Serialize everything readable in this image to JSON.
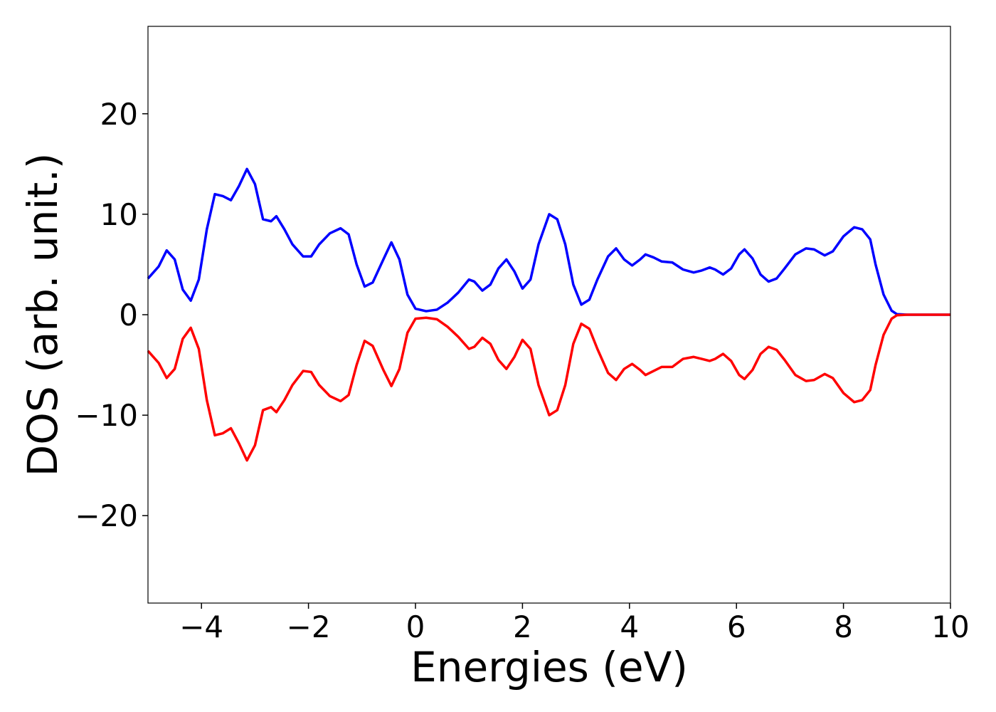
{
  "chart_data": {
    "type": "line",
    "xlabel": "Energies (eV)",
    "ylabel": "DOS (arb. unit.)",
    "xlim": [
      -5,
      10
    ],
    "ylim": [
      -28.7,
      28.7
    ],
    "xticks": [
      {
        "value": -4,
        "label": "−4"
      },
      {
        "value": -2,
        "label": "−2"
      },
      0,
      2,
      4,
      6,
      8,
      10
    ],
    "yticks": [
      {
        "value": -20,
        "label": "−20"
      },
      {
        "value": -10,
        "label": "−10"
      },
      0,
      10,
      20
    ],
    "x": [
      -5,
      -4.8,
      -4.65,
      -4.5,
      -4.35,
      -4.2,
      -4.05,
      -3.9,
      -3.75,
      -3.6,
      -3.45,
      -3.3,
      -3.15,
      -3.0,
      -2.85,
      -2.7,
      -2.6,
      -2.45,
      -2.3,
      -2.1,
      -1.95,
      -1.8,
      -1.6,
      -1.4,
      -1.25,
      -1.1,
      -0.95,
      -0.8,
      -0.6,
      -0.45,
      -0.3,
      -0.15,
      0,
      0.2,
      0.4,
      0.6,
      0.8,
      1.0,
      1.1,
      1.25,
      1.4,
      1.55,
      1.7,
      1.85,
      2.0,
      2.15,
      2.3,
      2.5,
      2.65,
      2.8,
      2.95,
      3.1,
      3.25,
      3.4,
      3.6,
      3.75,
      3.9,
      4.05,
      4.2,
      4.3,
      4.45,
      4.6,
      4.8,
      5.0,
      5.2,
      5.35,
      5.5,
      5.6,
      5.75,
      5.9,
      6.05,
      6.15,
      6.3,
      6.45,
      6.6,
      6.75,
      6.9,
      7.1,
      7.3,
      7.45,
      7.65,
      7.8,
      8.0,
      8.2,
      8.35,
      8.5,
      8.6,
      8.75,
      8.9,
      9.0,
      9.2,
      10
    ],
    "series": [
      {
        "color": "#0000ff",
        "values": [
          3.6,
          4.8,
          6.4,
          5.5,
          2.5,
          1.4,
          3.5,
          8.5,
          12.0,
          11.8,
          11.4,
          12.8,
          14.5,
          13.0,
          9.5,
          9.3,
          9.8,
          8.5,
          7.0,
          5.8,
          5.8,
          7.0,
          8.1,
          8.6,
          8.0,
          5.0,
          2.8,
          3.2,
          5.5,
          7.2,
          5.5,
          2.0,
          0.6,
          0.35,
          0.5,
          1.2,
          2.2,
          3.5,
          3.3,
          2.4,
          3.0,
          4.6,
          5.5,
          4.3,
          2.6,
          3.5,
          7.0,
          10.0,
          9.5,
          7.0,
          3.0,
          1.0,
          1.5,
          3.5,
          5.8,
          6.6,
          5.5,
          4.9,
          5.5,
          6.0,
          5.7,
          5.3,
          5.2,
          4.5,
          4.2,
          4.4,
          4.7,
          4.5,
          4.0,
          4.6,
          6.0,
          6.5,
          5.6,
          4.0,
          3.3,
          3.6,
          4.6,
          6.0,
          6.6,
          6.5,
          5.9,
          6.3,
          7.8,
          8.7,
          8.5,
          7.5,
          5.0,
          2.0,
          0.4,
          0.05,
          0,
          0
        ]
      },
      {
        "color": "#ff0000",
        "values": [
          -3.6,
          -4.8,
          -6.3,
          -5.4,
          -2.4,
          -1.3,
          -3.4,
          -8.5,
          -12.0,
          -11.8,
          -11.3,
          -12.8,
          -14.5,
          -13.0,
          -9.5,
          -9.2,
          -9.7,
          -8.5,
          -7.0,
          -5.6,
          -5.7,
          -7.0,
          -8.1,
          -8.6,
          -8.0,
          -5.0,
          -2.6,
          -3.1,
          -5.5,
          -7.1,
          -5.4,
          -1.8,
          -0.4,
          -0.3,
          -0.45,
          -1.2,
          -2.2,
          -3.4,
          -3.2,
          -2.3,
          -2.9,
          -4.5,
          -5.4,
          -4.2,
          -2.5,
          -3.4,
          -7.0,
          -10.0,
          -9.5,
          -7.0,
          -2.9,
          -0.9,
          -1.4,
          -3.4,
          -5.8,
          -6.5,
          -5.4,
          -4.9,
          -5.5,
          -6.0,
          -5.6,
          -5.2,
          -5.2,
          -4.4,
          -4.2,
          -4.4,
          -4.6,
          -4.4,
          -3.9,
          -4.6,
          -6.0,
          -6.4,
          -5.5,
          -3.9,
          -3.2,
          -3.5,
          -4.5,
          -6.0,
          -6.6,
          -6.5,
          -5.9,
          -6.3,
          -7.8,
          -8.7,
          -8.5,
          -7.5,
          -5.0,
          -2.0,
          -0.4,
          -0.05,
          0,
          0
        ]
      }
    ]
  }
}
